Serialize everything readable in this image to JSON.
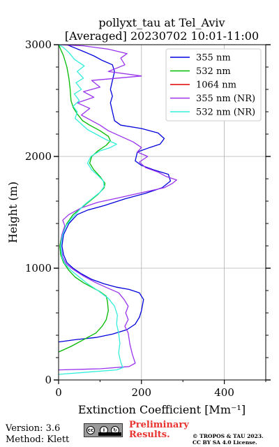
{
  "chart_data": {
    "type": "line",
    "title": "pollyxt_tau at Tel_Aviv",
    "subtitle": "[Averaged] 20230702 10:01-11:00",
    "xlabel": "Extinction Coefficient [Mm⁻¹]",
    "ylabel": "Height (m)",
    "xlim": [
      0,
      500
    ],
    "ylim": [
      0,
      3000
    ],
    "x_ticks": [
      0,
      200,
      400
    ],
    "y_ticks": [
      0,
      1000,
      2000,
      3000
    ],
    "grid": true,
    "legend_position": "top-right",
    "series": [
      {
        "name": "355 nm",
        "color": "#0000dd",
        "points": [
          [
            0,
            340
          ],
          [
            40,
            360
          ],
          [
            90,
            380
          ],
          [
            130,
            410
          ],
          [
            165,
            450
          ],
          [
            185,
            500
          ],
          [
            195,
            560
          ],
          [
            200,
            620
          ],
          [
            205,
            720
          ],
          [
            195,
            780
          ],
          [
            170,
            810
          ],
          [
            140,
            830
          ],
          [
            110,
            860
          ],
          [
            80,
            900
          ],
          [
            55,
            950
          ],
          [
            35,
            1000
          ],
          [
            20,
            1050
          ],
          [
            12,
            1120
          ],
          [
            8,
            1200
          ],
          [
            12,
            1300
          ],
          [
            25,
            1400
          ],
          [
            45,
            1480
          ],
          [
            70,
            1520
          ],
          [
            110,
            1560
          ],
          [
            160,
            1620
          ],
          [
            210,
            1670
          ],
          [
            250,
            1720
          ],
          [
            270,
            1780
          ],
          [
            265,
            1840
          ],
          [
            230,
            1880
          ],
          [
            200,
            1920
          ],
          [
            185,
            1960
          ],
          [
            190,
            2040
          ],
          [
            220,
            2080
          ],
          [
            245,
            2110
          ],
          [
            255,
            2160
          ],
          [
            240,
            2210
          ],
          [
            200,
            2250
          ],
          [
            150,
            2280
          ],
          [
            135,
            2320
          ],
          [
            130,
            2400
          ],
          [
            125,
            2480
          ],
          [
            130,
            2540
          ],
          [
            125,
            2600
          ],
          [
            130,
            2680
          ],
          [
            135,
            2760
          ],
          [
            130,
            2820
          ],
          [
            105,
            2860
          ],
          [
            85,
            2900
          ],
          [
            60,
            2940
          ],
          [
            40,
            2970
          ],
          [
            20,
            3000
          ]
        ]
      },
      {
        "name": "532 nm",
        "color": "#00bb00",
        "points": [
          [
            0,
            250
          ],
          [
            30,
            300
          ],
          [
            60,
            360
          ],
          [
            90,
            420
          ],
          [
            105,
            480
          ],
          [
            115,
            540
          ],
          [
            120,
            620
          ],
          [
            118,
            700
          ],
          [
            115,
            750
          ],
          [
            100,
            790
          ],
          [
            80,
            830
          ],
          [
            60,
            870
          ],
          [
            40,
            920
          ],
          [
            25,
            980
          ],
          [
            12,
            1050
          ],
          [
            5,
            1120
          ],
          [
            3,
            1200
          ],
          [
            8,
            1300
          ],
          [
            20,
            1400
          ],
          [
            35,
            1480
          ],
          [
            55,
            1540
          ],
          [
            75,
            1600
          ],
          [
            95,
            1660
          ],
          [
            110,
            1720
          ],
          [
            112,
            1760
          ],
          [
            100,
            1820
          ],
          [
            85,
            1880
          ],
          [
            75,
            1940
          ],
          [
            80,
            2000
          ],
          [
            95,
            2050
          ],
          [
            115,
            2100
          ],
          [
            125,
            2140
          ],
          [
            120,
            2180
          ],
          [
            100,
            2230
          ],
          [
            75,
            2280
          ],
          [
            58,
            2320
          ],
          [
            45,
            2380
          ],
          [
            35,
            2440
          ],
          [
            30,
            2500
          ],
          [
            28,
            2600
          ],
          [
            25,
            2700
          ],
          [
            20,
            2800
          ],
          [
            12,
            2900
          ],
          [
            0,
            3000
          ]
        ]
      },
      {
        "name": "1064 nm",
        "color": "#dd0000",
        "points": []
      },
      {
        "name": "355 nm (NR)",
        "color": "#9933ee",
        "points": [
          [
            0,
            90
          ],
          [
            100,
            100
          ],
          [
            170,
            120
          ],
          [
            185,
            150
          ],
          [
            178,
            230
          ],
          [
            172,
            320
          ],
          [
            168,
            420
          ],
          [
            160,
            480
          ],
          [
            168,
            540
          ],
          [
            162,
            600
          ],
          [
            168,
            660
          ],
          [
            158,
            720
          ],
          [
            145,
            780
          ],
          [
            120,
            820
          ],
          [
            90,
            870
          ],
          [
            60,
            930
          ],
          [
            35,
            990
          ],
          [
            18,
            1040
          ],
          [
            10,
            1100
          ],
          [
            5,
            1200
          ],
          [
            8,
            1300
          ],
          [
            15,
            1380
          ],
          [
            10,
            1430
          ],
          [
            25,
            1480
          ],
          [
            55,
            1540
          ],
          [
            95,
            1590
          ],
          [
            145,
            1630
          ],
          [
            205,
            1680
          ],
          [
            255,
            1720
          ],
          [
            275,
            1760
          ],
          [
            285,
            1790
          ],
          [
            260,
            1820
          ],
          [
            240,
            1860
          ],
          [
            210,
            1900
          ],
          [
            195,
            1950
          ],
          [
            215,
            2000
          ],
          [
            190,
            2040
          ],
          [
            200,
            2080
          ],
          [
            180,
            2130
          ],
          [
            150,
            2180
          ],
          [
            120,
            2230
          ],
          [
            100,
            2280
          ],
          [
            80,
            2320
          ],
          [
            55,
            2370
          ],
          [
            75,
            2430
          ],
          [
            45,
            2480
          ],
          [
            85,
            2530
          ],
          [
            60,
            2580
          ],
          [
            100,
            2620
          ],
          [
            80,
            2680
          ],
          [
            200,
            2720
          ],
          [
            120,
            2760
          ],
          [
            160,
            2820
          ],
          [
            150,
            2880
          ],
          [
            165,
            2920
          ],
          [
            120,
            2960
          ],
          [
            60,
            2990
          ],
          [
            0,
            3000
          ]
        ]
      },
      {
        "name": "532 nm (NR)",
        "color": "#33eedd",
        "points": [
          [
            0,
            50
          ],
          [
            70,
            70
          ],
          [
            140,
            90
          ],
          [
            155,
            110
          ],
          [
            150,
            160
          ],
          [
            145,
            240
          ],
          [
            148,
            330
          ],
          [
            145,
            420
          ],
          [
            140,
            500
          ],
          [
            142,
            580
          ],
          [
            135,
            660
          ],
          [
            120,
            730
          ],
          [
            95,
            800
          ],
          [
            70,
            860
          ],
          [
            50,
            920
          ],
          [
            30,
            980
          ],
          [
            15,
            1040
          ],
          [
            8,
            1100
          ],
          [
            5,
            1200
          ],
          [
            10,
            1300
          ],
          [
            18,
            1380
          ],
          [
            30,
            1440
          ],
          [
            45,
            1500
          ],
          [
            60,
            1560
          ],
          [
            80,
            1620
          ],
          [
            100,
            1680
          ],
          [
            110,
            1730
          ],
          [
            108,
            1780
          ],
          [
            95,
            1830
          ],
          [
            80,
            1880
          ],
          [
            70,
            1940
          ],
          [
            78,
            2000
          ],
          [
            100,
            2050
          ],
          [
            125,
            2080
          ],
          [
            140,
            2110
          ],
          [
            115,
            2150
          ],
          [
            90,
            2200
          ],
          [
            70,
            2240
          ],
          [
            55,
            2290
          ],
          [
            40,
            2340
          ],
          [
            45,
            2400
          ],
          [
            35,
            2450
          ],
          [
            50,
            2500
          ],
          [
            38,
            2560
          ],
          [
            55,
            2600
          ],
          [
            42,
            2660
          ],
          [
            60,
            2700
          ],
          [
            45,
            2760
          ],
          [
            62,
            2810
          ],
          [
            38,
            2870
          ],
          [
            25,
            2930
          ],
          [
            10,
            2980
          ],
          [
            0,
            3000
          ]
        ]
      }
    ]
  },
  "footer": {
    "version": "Version: 3.6",
    "method": "Method: Klett",
    "license_badge": "cc-by-sa-icon",
    "preliminary_line1": "Preliminary",
    "preliminary_line2": "Results.",
    "copyright_line1": "© TROPOS & TAU 2023.",
    "copyright_line2": "CC BY SA 4.0 License.",
    "preliminary_color": "#e8322e"
  }
}
